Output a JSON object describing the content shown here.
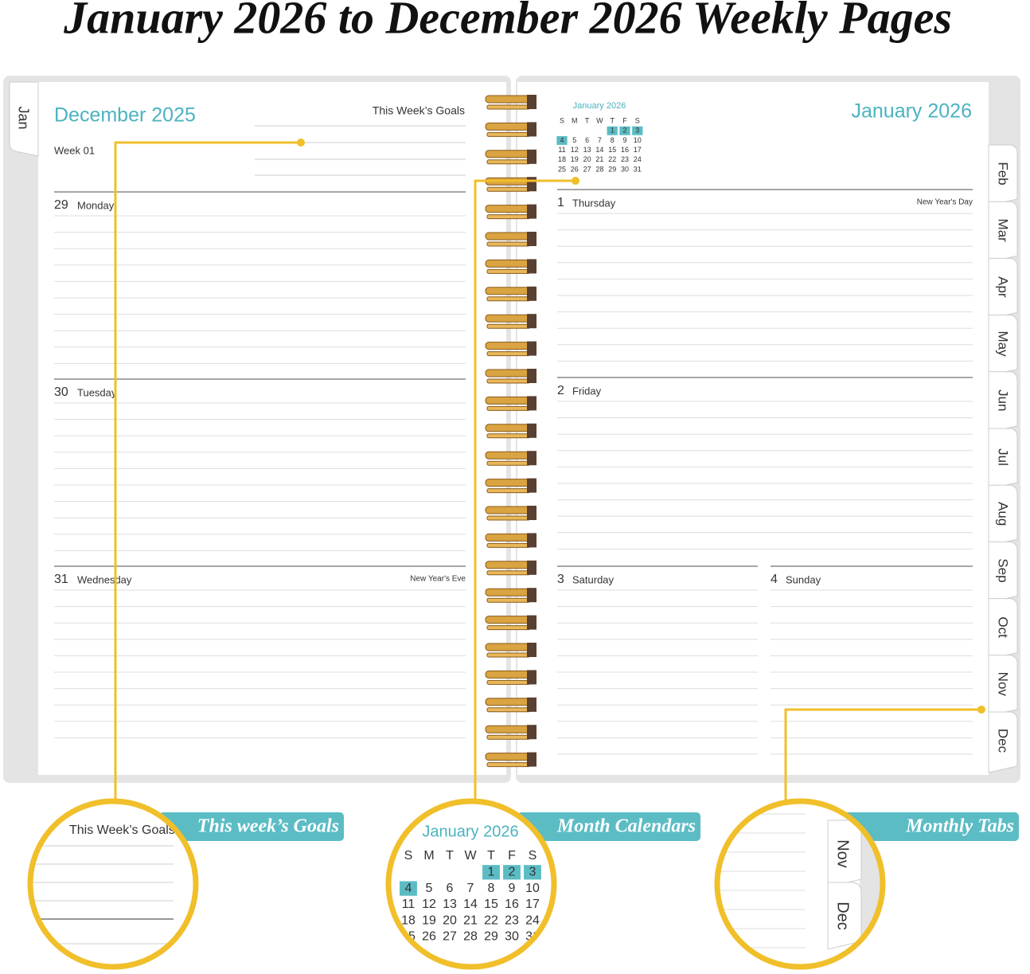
{
  "title": "January 2026 to December 2026 Weekly Pages",
  "left_page": {
    "tab": "Jan",
    "month": "December 2025",
    "goals_label": "This Week’s Goals",
    "week": "Week 01",
    "days": [
      {
        "date": "29",
        "name": "Monday"
      },
      {
        "date": "30",
        "name": "Tuesday"
      },
      {
        "date": "31",
        "name": "Wednesday",
        "note": "New Year's Eve"
      }
    ]
  },
  "right_page": {
    "month": "January 2026",
    "mini_calendar": {
      "title": "January 2026",
      "weekdays": [
        "S",
        "M",
        "T",
        "W",
        "T",
        "F",
        "S"
      ],
      "weeks": [
        [
          "1",
          "2",
          "3"
        ],
        [
          "4",
          "5",
          "6",
          "7",
          "8",
          "9",
          "10"
        ],
        [
          "11",
          "12",
          "13",
          "14",
          "15",
          "16",
          "17"
        ],
        [
          "18",
          "19",
          "20",
          "21",
          "22",
          "23",
          "24"
        ],
        [
          "25",
          "26",
          "27",
          "28",
          "29",
          "30",
          "31"
        ]
      ]
    },
    "days": [
      {
        "date": "1",
        "name": "Thursday",
        "note": "New Year's Day"
      },
      {
        "date": "2",
        "name": "Friday"
      },
      {
        "date": "3",
        "name": "Saturday"
      },
      {
        "date": "4",
        "name": "Sunday"
      }
    ],
    "tabs": [
      "Feb",
      "Mar",
      "Apr",
      "May",
      "Jun",
      "Jul",
      "Aug",
      "Sep",
      "Oct",
      "Nov",
      "Dec"
    ]
  },
  "callouts": [
    {
      "label": "This week’s Goals",
      "zoom_text": "This Week’s Goals"
    },
    {
      "label": "Month Calendars"
    },
    {
      "label": "Monthly Tabs",
      "zoom_tabs": [
        "Nov",
        "Dec"
      ]
    }
  ]
}
